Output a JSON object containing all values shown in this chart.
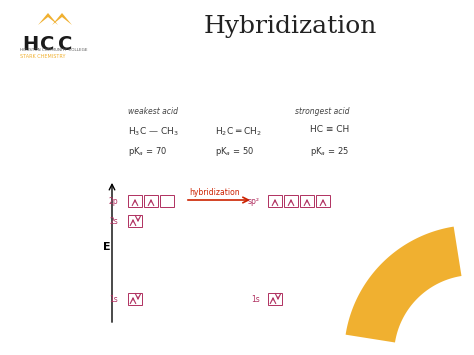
{
  "title": "Hybridization",
  "title_fontsize": 18,
  "bg_color": "#ffffff",
  "weakest_label": "weakest acid",
  "strongest_label": "strongest acid",
  "mol1_formula": "H$_3$C — CH$_3$",
  "mol2_formula": "H$_2$C ═ CH$_2$",
  "mol3_formula": "HC ≡ CH",
  "pka1": "pK$_a$ = 70",
  "pka2": "pK$_a$ = 50",
  "pka3": "pK$_a$ = 25",
  "orbital_color": "#b03060",
  "hybridization_label": "hybridization",
  "E_label": "E",
  "arrow_color": "#cc2200",
  "gold_color": "#f0b030",
  "hcc_color": "#1a1a1a"
}
